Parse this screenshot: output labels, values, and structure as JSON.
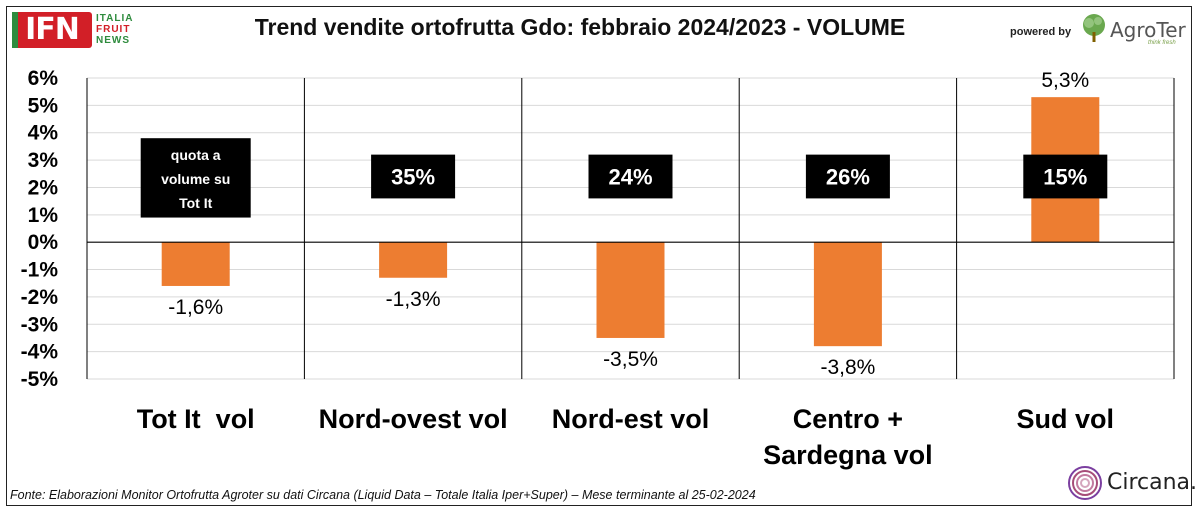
{
  "header": {
    "title": "Trend vendite ortofrutta Gdo: febbraio 2024/2023 - VOLUME",
    "logo_left": {
      "main": "IFN",
      "lines": [
        "ITALIA",
        "FRUIT",
        "NEWS"
      ]
    },
    "powered_by": "powered by",
    "logo_right": {
      "name": "AgroTer",
      "tagline": "think fresh",
      "icon": "tree-icon"
    }
  },
  "footer": {
    "source": "Fonte: Elaborazioni Monitor Ortofrutta Agroter su dati Circana (Liquid Data – Totale Italia Iper+Super) – Mese terminante al 25-02-2024",
    "brand": "Circana.",
    "brand_icon": "circana-swirl-icon"
  },
  "chart_data": {
    "type": "bar",
    "title": "Trend vendite ortofrutta Gdo: febbraio 2024/2023 - VOLUME",
    "categories": [
      "Tot It  vol",
      "Nord-ovest vol",
      "Nord-est vol",
      "Centro + Sardegna vol",
      "Sud vol"
    ],
    "category_lines": [
      [
        "Tot It  vol"
      ],
      [
        "Nord-ovest vol"
      ],
      [
        "Nord-est vol"
      ],
      [
        "Centro +",
        "Sardegna vol"
      ],
      [
        "Sud vol"
      ]
    ],
    "values": [
      -1.6,
      -1.3,
      -3.5,
      -3.8,
      5.3
    ],
    "value_labels": [
      "-1,6%",
      "-1,3%",
      "-3,5%",
      "-3,8%",
      "5,3%"
    ],
    "share_labels": [
      [
        "quota a",
        "volume su",
        "Tot It"
      ],
      [
        "35%"
      ],
      [
        "24%"
      ],
      [
        "26%"
      ],
      [
        "15%"
      ]
    ],
    "yticks": [
      6,
      5,
      4,
      3,
      2,
      1,
      0,
      -1,
      -2,
      -3,
      -4,
      -5
    ],
    "ytick_labels": [
      "6%",
      "5%",
      "4%",
      "3%",
      "2%",
      "1%",
      "0%",
      "-1%",
      "-2%",
      "-3%",
      "-4%",
      "-5%"
    ],
    "ylim": [
      -5,
      6
    ],
    "grid": true,
    "colors": {
      "bar": "#ed7d31",
      "share_box": "#000000",
      "share_text": "#ffffff",
      "grid": "#d9d9d9",
      "axis": "#000000"
    }
  }
}
